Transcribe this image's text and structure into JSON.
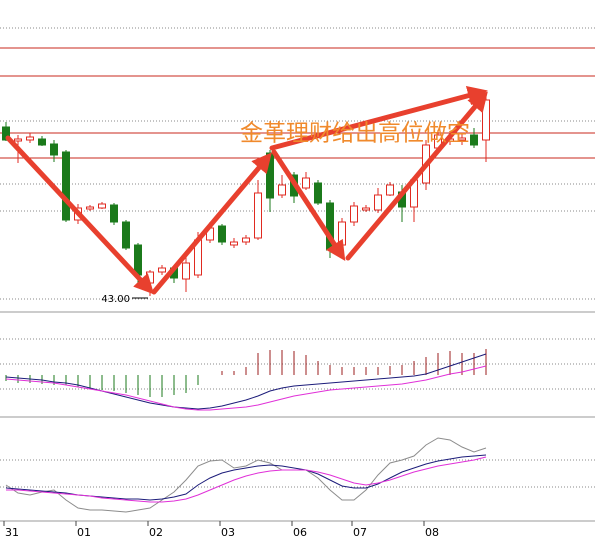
{
  "chart_data": [
    {
      "type": "candlestick",
      "open": [
        59.9,
        58.5,
        58.6,
        58.7,
        58.2,
        57.4,
        50.6,
        51.7,
        51.8,
        52.1,
        50.4,
        48.1,
        44.3,
        45.4,
        45.8,
        44.7,
        45.1,
        48.6,
        50.0,
        48.1,
        48.4,
        48.8,
        57.3,
        53.1,
        55.1,
        53.8,
        54.3,
        52.3,
        48.1,
        50.4,
        51.6,
        51.6,
        53.1,
        53.4,
        51.9,
        54.3,
        57.8,
        58.5,
        58.6,
        59.1,
        58.6
      ],
      "high": [
        60.4,
        59.1,
        59.3,
        59.0,
        58.6,
        57.6,
        52.2,
        52.1,
        52.4,
        52.3,
        50.6,
        48.3,
        45.6,
        46.1,
        46.0,
        47.1,
        49.4,
        50.4,
        50.2,
        48.8,
        49.1,
        54.6,
        57.6,
        55.1,
        55.4,
        55.4,
        54.6,
        52.6,
        50.8,
        52.4,
        52.1,
        53.8,
        54.4,
        54.1,
        55.0,
        58.6,
        59.6,
        59.1,
        59.3,
        59.8,
        63.3
      ],
      "low": [
        58.5,
        56.3,
        58.3,
        58.0,
        56.4,
        50.4,
        50.2,
        51.5,
        51.7,
        50.1,
        47.6,
        44.2,
        43.0,
        45.1,
        44.3,
        43.4,
        44.8,
        48.3,
        48.1,
        47.8,
        48.1,
        48.6,
        51.4,
        52.8,
        52.3,
        53.6,
        52.1,
        46.8,
        47.4,
        50.0,
        51.4,
        51.3,
        53.0,
        50.4,
        50.4,
        53.6,
        57.6,
        58.1,
        58.1,
        57.8,
        56.4
      ],
      "close": [
        58.6,
        58.7,
        58.9,
        58.1,
        57.1,
        50.6,
        51.8,
        51.9,
        52.2,
        50.4,
        47.8,
        45.1,
        45.4,
        45.8,
        44.8,
        46.3,
        48.6,
        49.8,
        48.4,
        48.4,
        48.8,
        53.3,
        52.8,
        54.1,
        53.0,
        54.8,
        52.3,
        47.6,
        50.4,
        52.0,
        51.8,
        53.1,
        54.1,
        51.9,
        54.6,
        58.1,
        59.1,
        58.7,
        58.8,
        58.1,
        62.6
      ],
      "up_color": "#e02a20",
      "down_color": "#1b7a1b",
      "ylim": [
        41.6,
        72.6
      ],
      "resistance_lines": [
        67.8,
        65.0,
        59.3,
        56.8
      ],
      "resistance_color": "#c8281e",
      "grid_lines": [
        69.8,
        60.5,
        54.2,
        51.5,
        42.7
      ],
      "low_label": {
        "value": 43.0,
        "label": "43.00"
      },
      "annotation": "金革理财给出高位做空",
      "annotation_color": "#f08a2c"
    },
    {
      "type": "macd",
      "histogram": {
        "values": [
          -0.6,
          -0.8,
          -0.8,
          -0.9,
          -1.0,
          -1.0,
          -1.2,
          -1.4,
          -1.5,
          -1.6,
          -1.8,
          -2.0,
          -2.2,
          -2.2,
          -2.0,
          -1.8,
          -1.0,
          0.0,
          0.4,
          0.4,
          0.8,
          2.2,
          2.5,
          2.5,
          2.4,
          2.0,
          1.4,
          1.0,
          0.8,
          0.8,
          0.8,
          0.8,
          0.9,
          1.0,
          1.4,
          1.8,
          2.2,
          2.4,
          2.2,
          2.2,
          2.6
        ],
        "up_color": "#9b1c1c",
        "down_color": "#1b7a1b"
      },
      "series": [
        {
          "color": "#1c1c7a",
          "values": [
            -0.2,
            -0.3,
            -0.4,
            -0.5,
            -0.7,
            -0.8,
            -1.0,
            -1.3,
            -1.6,
            -1.9,
            -2.2,
            -2.5,
            -2.8,
            -3.0,
            -3.2,
            -3.3,
            -3.4,
            -3.3,
            -3.1,
            -2.8,
            -2.5,
            -2.1,
            -1.6,
            -1.3,
            -1.1,
            -1.0,
            -0.9,
            -0.8,
            -0.7,
            -0.6,
            -0.5,
            -0.4,
            -0.3,
            -0.2,
            -0.1,
            0.1,
            0.5,
            0.9,
            1.3,
            1.7,
            2.1
          ]
        },
        {
          "color": "#e030d8",
          "values": [
            -0.4,
            -0.5,
            -0.6,
            -0.7,
            -0.8,
            -1.0,
            -1.2,
            -1.4,
            -1.6,
            -1.8,
            -2.0,
            -2.3,
            -2.6,
            -2.9,
            -3.2,
            -3.4,
            -3.5,
            -3.5,
            -3.4,
            -3.3,
            -3.2,
            -3.0,
            -2.7,
            -2.4,
            -2.1,
            -1.9,
            -1.7,
            -1.5,
            -1.4,
            -1.3,
            -1.2,
            -1.1,
            -1.0,
            -0.9,
            -0.7,
            -0.5,
            -0.2,
            0.1,
            0.3,
            0.6,
            0.9
          ]
        }
      ],
      "ylim": [
        -4.0,
        6.0
      ],
      "grid_lines": [
        3.6,
        1.1,
        -1.4
      ]
    },
    {
      "type": "line",
      "categories": [
        "31",
        null,
        null,
        null,
        null,
        null,
        "01",
        null,
        null,
        null,
        null,
        null,
        "02",
        null,
        null,
        null,
        null,
        null,
        "03",
        null,
        null,
        null,
        null,
        null,
        "06",
        null,
        null,
        null,
        null,
        "07",
        null,
        null,
        null,
        null,
        null,
        "08",
        null,
        null,
        null,
        null,
        null
      ],
      "series": [
        {
          "color": "#8c8c8c",
          "values": [
            35,
            27,
            25,
            28,
            30,
            20,
            12,
            10,
            10,
            9,
            8,
            10,
            12,
            20,
            28,
            40,
            54,
            59,
            60,
            52,
            54,
            60,
            57,
            50,
            50,
            50,
            42,
            30,
            20,
            20,
            30,
            45,
            57,
            60,
            64,
            75,
            82,
            80,
            73,
            68,
            72
          ]
        },
        {
          "color": "#1c1c7a",
          "values": [
            32,
            31,
            30,
            29,
            28,
            27,
            25,
            24,
            23,
            22,
            21,
            21,
            20,
            21,
            23,
            26,
            35,
            42,
            47,
            50,
            52,
            54,
            55,
            54,
            52,
            50,
            46,
            40,
            34,
            32,
            32,
            36,
            42,
            48,
            52,
            56,
            59,
            61,
            63,
            64,
            65
          ]
        },
        {
          "color": "#e030d8",
          "values": [
            30,
            30,
            29,
            28,
            27,
            26,
            25,
            24,
            22,
            21,
            20,
            19,
            18,
            18,
            19,
            21,
            25,
            30,
            35,
            40,
            44,
            47,
            49,
            50,
            50,
            50,
            48,
            45,
            41,
            37,
            35,
            37,
            40,
            44,
            48,
            51,
            54,
            56,
            58,
            60,
            63
          ]
        }
      ],
      "ylim": [
        0,
        102
      ],
      "grid_lines": [
        60,
        33
      ]
    }
  ]
}
